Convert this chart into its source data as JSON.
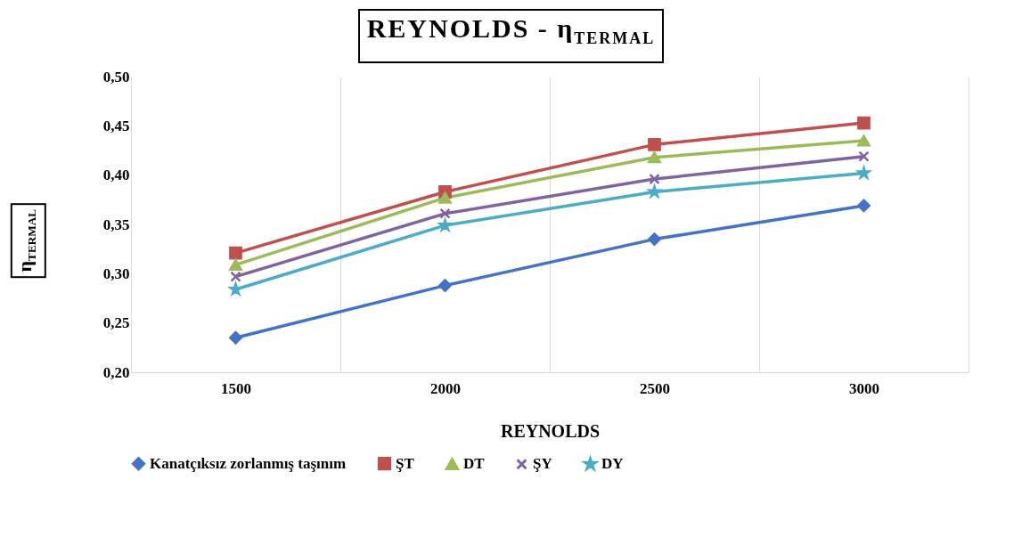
{
  "chart_data": {
    "type": "line",
    "title": "REYNOLDS - η$_{TERMAL}$",
    "xlabel": "REYNOLDS",
    "ylabel": "η$_{TERMAL}$",
    "categories": [
      "1500",
      "2000",
      "2500",
      "3000"
    ],
    "ylim": [
      0.2,
      0.5
    ],
    "yticks": [
      {
        "value": 0.2,
        "label": "0,20"
      },
      {
        "value": 0.25,
        "label": "0,25"
      },
      {
        "value": 0.3,
        "label": "0,30"
      },
      {
        "value": 0.35,
        "label": "0,35"
      },
      {
        "value": 0.4,
        "label": "0,40"
      },
      {
        "value": 0.45,
        "label": "0,45"
      },
      {
        "value": 0.5,
        "label": "0,50"
      }
    ],
    "grid": "x",
    "legend": "bottom",
    "series": [
      {
        "name": "Kanatçıksız zorlanmış taşınım",
        "color": "#4472c4",
        "marker": "diamond",
        "values": [
          0.235,
          0.288,
          0.335,
          0.369
        ]
      },
      {
        "name": "ŞT",
        "color": "#c0504d",
        "marker": "square",
        "values": [
          0.321,
          0.383,
          0.431,
          0.453
        ]
      },
      {
        "name": "DT",
        "color": "#9bbb59",
        "marker": "triangle",
        "values": [
          0.309,
          0.377,
          0.418,
          0.435
        ]
      },
      {
        "name": "ŞY",
        "color": "#8064a2",
        "marker": "cross",
        "values": [
          0.297,
          0.361,
          0.396,
          0.419
        ]
      },
      {
        "name": "DY",
        "color": "#4bacc6",
        "marker": "star",
        "values": [
          0.284,
          0.349,
          0.383,
          0.402
        ]
      }
    ]
  }
}
